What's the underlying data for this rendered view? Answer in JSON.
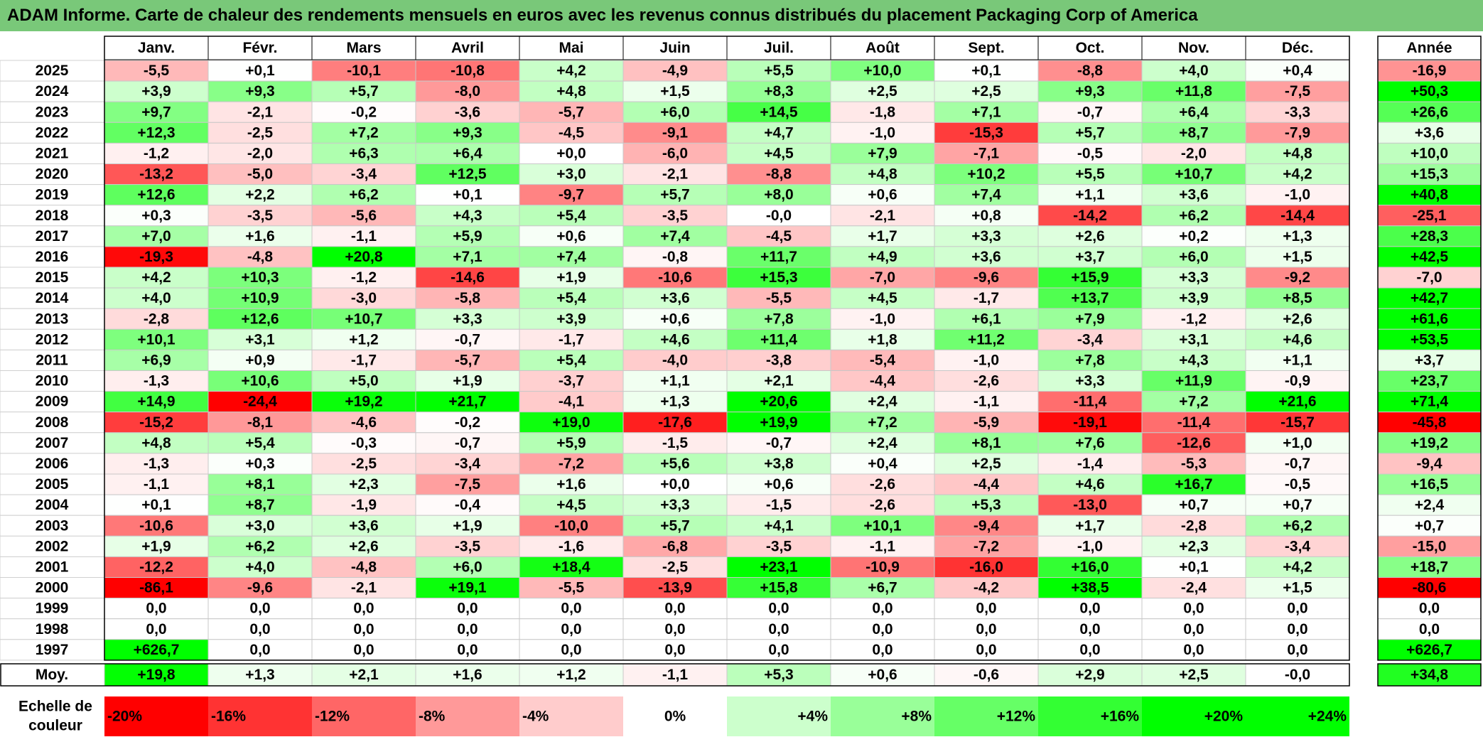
{
  "title": "ADAM Informe. Carte de chaleur des rendements mensuels en euros avec les revenus connus distribués du placement Packaging Corp of America",
  "chart_data": {
    "type": "heatmap",
    "title": "ADAM Informe. Carte de chaleur des rendements mensuels en euros avec les revenus connus distribués du placement Packaging Corp of America",
    "columns": [
      "Janv.",
      "Févr.",
      "Mars",
      "Avril",
      "Mai",
      "Juin",
      "Juil.",
      "Août",
      "Sept.",
      "Oct.",
      "Nov.",
      "Déc."
    ],
    "year_column_label": "Année",
    "average_row_label": "Moy.",
    "rows": [
      {
        "year": "2025",
        "values": [
          "-5,5",
          "+0,1",
          "-10,1",
          "-10,8",
          "+4,2",
          "-4,9",
          "+5,5",
          "+10,0",
          "+0,1",
          "-8,8",
          "+4,0",
          "+0,4"
        ],
        "annual": "-16,9"
      },
      {
        "year": "2024",
        "values": [
          "+3,9",
          "+9,3",
          "+5,7",
          "-8,0",
          "+4,8",
          "+1,5",
          "+8,3",
          "+2,5",
          "+2,5",
          "+9,3",
          "+11,8",
          "-7,5"
        ],
        "annual": "+50,3"
      },
      {
        "year": "2023",
        "values": [
          "+9,7",
          "-2,1",
          "-0,2",
          "-3,6",
          "-5,7",
          "+6,0",
          "+14,5",
          "-1,8",
          "+7,1",
          "-0,7",
          "+6,4",
          "-3,3"
        ],
        "annual": "+26,6"
      },
      {
        "year": "2022",
        "values": [
          "+12,3",
          "-2,5",
          "+7,2",
          "+9,3",
          "-4,5",
          "-9,1",
          "+4,7",
          "-1,0",
          "-15,3",
          "+5,7",
          "+8,7",
          "-7,9"
        ],
        "annual": "+3,6"
      },
      {
        "year": "2021",
        "values": [
          "-1,2",
          "-2,0",
          "+6,3",
          "+6,4",
          "+0,0",
          "-6,0",
          "+4,5",
          "+7,9",
          "-7,1",
          "-0,5",
          "-2,0",
          "+4,8"
        ],
        "annual": "+10,0"
      },
      {
        "year": "2020",
        "values": [
          "-13,2",
          "-5,0",
          "-3,4",
          "+12,5",
          "+3,0",
          "-2,1",
          "-8,8",
          "+4,8",
          "+10,2",
          "+5,5",
          "+10,7",
          "+4,2"
        ],
        "annual": "+15,3"
      },
      {
        "year": "2019",
        "values": [
          "+12,6",
          "+2,2",
          "+6,2",
          "+0,1",
          "-9,7",
          "+5,7",
          "+8,0",
          "+0,6",
          "+7,4",
          "+1,1",
          "+3,6",
          "-1,0"
        ],
        "annual": "+40,8"
      },
      {
        "year": "2018",
        "values": [
          "+0,3",
          "-3,5",
          "-5,6",
          "+4,3",
          "+5,4",
          "-3,5",
          "-0,0",
          "-2,1",
          "+0,8",
          "-14,2",
          "+6,2",
          "-14,4"
        ],
        "annual": "-25,1"
      },
      {
        "year": "2017",
        "values": [
          "+7,0",
          "+1,6",
          "-1,1",
          "+5,9",
          "+0,6",
          "+7,4",
          "-4,5",
          "+1,7",
          "+3,3",
          "+2,6",
          "+0,2",
          "+1,3"
        ],
        "annual": "+28,3"
      },
      {
        "year": "2016",
        "values": [
          "-19,3",
          "-4,8",
          "+20,8",
          "+7,1",
          "+7,4",
          "-0,8",
          "+11,7",
          "+4,9",
          "+3,6",
          "+3,7",
          "+6,0",
          "+1,5"
        ],
        "annual": "+42,5"
      },
      {
        "year": "2015",
        "values": [
          "+4,2",
          "+10,3",
          "-1,2",
          "-14,6",
          "+1,9",
          "-10,6",
          "+15,3",
          "-7,0",
          "-9,6",
          "+15,9",
          "+3,3",
          "-9,2"
        ],
        "annual": "-7,0"
      },
      {
        "year": "2014",
        "values": [
          "+4,0",
          "+10,9",
          "-3,0",
          "-5,8",
          "+5,4",
          "+3,6",
          "-5,5",
          "+4,5",
          "-1,7",
          "+13,7",
          "+3,9",
          "+8,5"
        ],
        "annual": "+42,7"
      },
      {
        "year": "2013",
        "values": [
          "-2,8",
          "+12,6",
          "+10,7",
          "+3,3",
          "+3,9",
          "+0,6",
          "+7,8",
          "-1,0",
          "+6,1",
          "+7,9",
          "-1,2",
          "+2,6"
        ],
        "annual": "+61,6"
      },
      {
        "year": "2012",
        "values": [
          "+10,1",
          "+3,1",
          "+1,2",
          "-0,7",
          "-1,7",
          "+4,6",
          "+11,4",
          "+1,8",
          "+11,2",
          "-3,4",
          "+3,1",
          "+4,6"
        ],
        "annual": "+53,5"
      },
      {
        "year": "2011",
        "values": [
          "+6,9",
          "+0,9",
          "-1,7",
          "-5,7",
          "+5,4",
          "-4,0",
          "-3,8",
          "-5,4",
          "-1,0",
          "+7,8",
          "+4,3",
          "+1,1"
        ],
        "annual": "+3,7"
      },
      {
        "year": "2010",
        "values": [
          "-1,3",
          "+10,6",
          "+5,0",
          "+1,9",
          "-3,7",
          "+1,1",
          "+2,1",
          "-4,4",
          "-2,6",
          "+3,3",
          "+11,9",
          "-0,9"
        ],
        "annual": "+23,7"
      },
      {
        "year": "2009",
        "values": [
          "+14,9",
          "-24,4",
          "+19,2",
          "+21,7",
          "-4,1",
          "+1,3",
          "+20,6",
          "+2,4",
          "-1,1",
          "-11,4",
          "+7,2",
          "+21,6"
        ],
        "annual": "+71,4"
      },
      {
        "year": "2008",
        "values": [
          "-15,2",
          "-8,1",
          "-4,6",
          "-0,2",
          "+19,0",
          "-17,6",
          "+19,9",
          "+7,2",
          "-5,9",
          "-19,1",
          "-11,4",
          "-15,7"
        ],
        "annual": "-45,8"
      },
      {
        "year": "2007",
        "values": [
          "+4,8",
          "+5,4",
          "-0,3",
          "-0,7",
          "+5,9",
          "-1,5",
          "-0,7",
          "+2,4",
          "+8,1",
          "+7,6",
          "-12,6",
          "+1,0"
        ],
        "annual": "+19,2"
      },
      {
        "year": "2006",
        "values": [
          "-1,3",
          "+0,3",
          "-2,5",
          "-3,4",
          "-7,2",
          "+5,6",
          "+3,8",
          "+0,4",
          "+2,5",
          "-1,4",
          "-5,3",
          "-0,7"
        ],
        "annual": "-9,4"
      },
      {
        "year": "2005",
        "values": [
          "-1,1",
          "+8,1",
          "+2,3",
          "-7,5",
          "+1,6",
          "+0,0",
          "+0,6",
          "-2,6",
          "-4,4",
          "+4,6",
          "+16,7",
          "-0,5"
        ],
        "annual": "+16,5"
      },
      {
        "year": "2004",
        "values": [
          "+0,1",
          "+8,7",
          "-1,9",
          "-0,4",
          "+4,5",
          "+3,3",
          "-1,5",
          "-2,6",
          "+5,3",
          "-13,0",
          "+0,7",
          "+0,7"
        ],
        "annual": "+2,4"
      },
      {
        "year": "2003",
        "values": [
          "-10,6",
          "+3,0",
          "+3,6",
          "+1,9",
          "-10,0",
          "+5,7",
          "+4,1",
          "+10,1",
          "-9,4",
          "+1,7",
          "-2,8",
          "+6,2"
        ],
        "annual": "+0,7"
      },
      {
        "year": "2002",
        "values": [
          "+1,9",
          "+6,2",
          "+2,6",
          "-3,5",
          "-1,6",
          "-6,8",
          "-3,5",
          "-1,1",
          "-7,2",
          "-1,0",
          "+2,3",
          "-3,4"
        ],
        "annual": "-15,0"
      },
      {
        "year": "2001",
        "values": [
          "-12,2",
          "+4,0",
          "-4,8",
          "+6,0",
          "+18,4",
          "-2,5",
          "+23,1",
          "-10,9",
          "-16,0",
          "+16,0",
          "+0,1",
          "+4,2"
        ],
        "annual": "+18,7"
      },
      {
        "year": "2000",
        "values": [
          "-86,1",
          "-9,6",
          "-2,1",
          "+19,1",
          "-5,5",
          "-13,9",
          "+15,8",
          "+6,7",
          "-4,2",
          "+38,5",
          "-2,4",
          "+1,5"
        ],
        "annual": "-80,6"
      },
      {
        "year": "1999",
        "values": [
          "0,0",
          "0,0",
          "0,0",
          "0,0",
          "0,0",
          "0,0",
          "0,0",
          "0,0",
          "0,0",
          "0,0",
          "0,0",
          "0,0"
        ],
        "annual": "0,0"
      },
      {
        "year": "1998",
        "values": [
          "0,0",
          "0,0",
          "0,0",
          "0,0",
          "0,0",
          "0,0",
          "0,0",
          "0,0",
          "0,0",
          "0,0",
          "0,0",
          "0,0"
        ],
        "annual": "0,0"
      },
      {
        "year": "1997",
        "values": [
          "+626,7",
          "0,0",
          "0,0",
          "0,0",
          "0,0",
          "0,0",
          "0,0",
          "0,0",
          "0,0",
          "0,0",
          "0,0",
          "0,0"
        ],
        "annual": "+626,7"
      }
    ],
    "averages": {
      "values": [
        "+19,8",
        "+1,3",
        "+2,1",
        "+1,6",
        "+1,2",
        "-1,1",
        "+5,3",
        "+0,6",
        "-0,6",
        "+2,9",
        "+2,5",
        "-0,0"
      ],
      "annual": "+34,8"
    },
    "color_scale": {
      "label_line1": "Echelle de",
      "label_line2": "couleur",
      "stops": [
        "-20%",
        "-16%",
        "-12%",
        "-8%",
        "-4%",
        "0%",
        "+4%",
        "+8%",
        "+12%",
        "+16%",
        "+20%",
        "+24%"
      ],
      "negative_color": "#ff0000",
      "neutral_color": "#ffffff",
      "positive_color": "#00ff00"
    }
  }
}
